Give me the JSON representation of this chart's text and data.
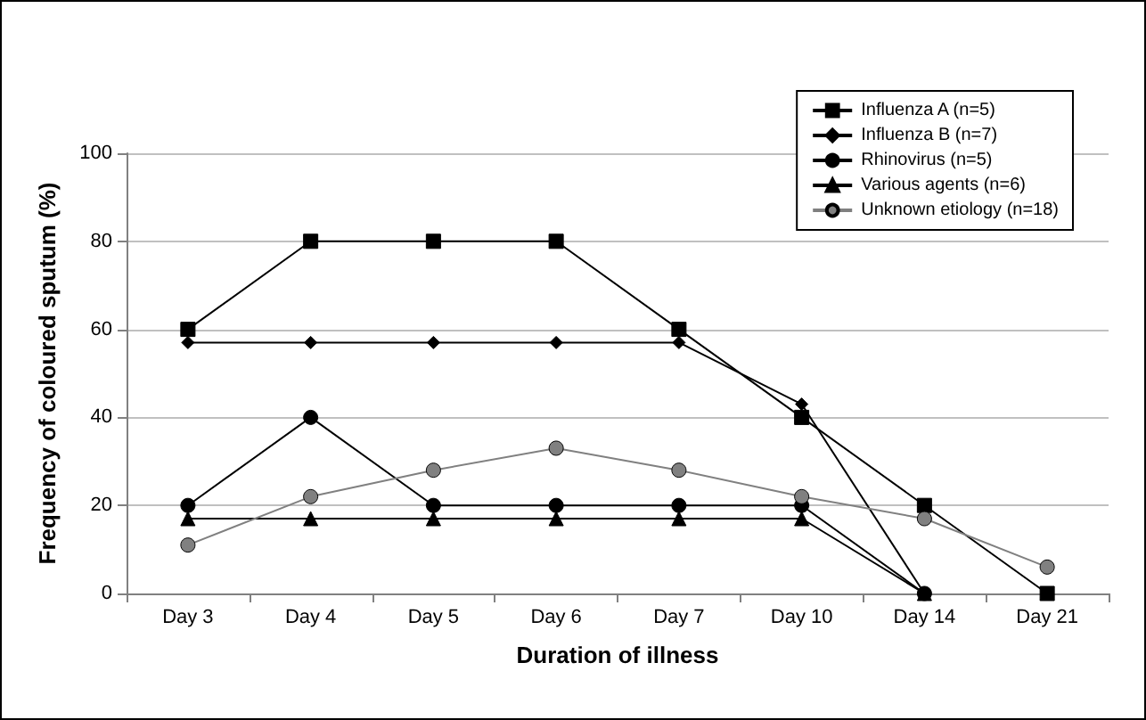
{
  "chart_data": {
    "type": "line",
    "xlabel": "Duration of illness",
    "ylabel": "Frequency of coloured sputum (%)",
    "categories": [
      "Day 3",
      "Day 4",
      "Day 5",
      "Day 6",
      "Day 7",
      "Day 10",
      "Day 14",
      "Day 21"
    ],
    "series": [
      {
        "name": "Influenza A (n=5)",
        "color": "#000000",
        "marker": "square",
        "values": [
          60,
          80,
          80,
          80,
          60,
          40,
          20,
          0
        ]
      },
      {
        "name": "Influenza B (n=7)",
        "color": "#000000",
        "marker": "diamond",
        "values": [
          57,
          57,
          57,
          57,
          57,
          43,
          0,
          null
        ]
      },
      {
        "name": "Rhinovirus (n=5)",
        "color": "#000000",
        "marker": "circle",
        "values": [
          20,
          40,
          20,
          20,
          20,
          20,
          0,
          null
        ]
      },
      {
        "name": "Various agents (n=6)",
        "color": "#000000",
        "marker": "triangle",
        "values": [
          17,
          17,
          17,
          17,
          17,
          17,
          0,
          null
        ]
      },
      {
        "name": "Unknown etiology (n=18)",
        "color": "#808080",
        "marker": "circle",
        "values": [
          11,
          22,
          28,
          33,
          28,
          22,
          17,
          6
        ]
      }
    ],
    "ylim": [
      0,
      100
    ],
    "yticks": [
      0,
      20,
      40,
      60,
      80,
      100
    ],
    "grid": "y",
    "legend": "top right",
    "line_style": "solid"
  }
}
